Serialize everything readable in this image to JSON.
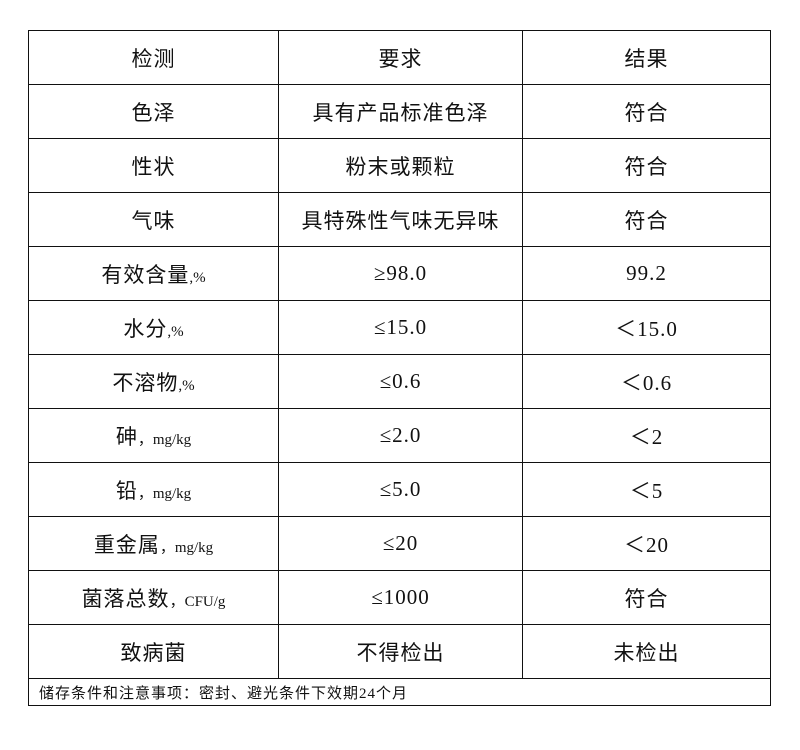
{
  "headers": [
    "检测",
    "要求",
    "结果"
  ],
  "rows": [
    {
      "item": "色泽",
      "unit": "",
      "requirement": "具有产品标准色泽",
      "result": "符合"
    },
    {
      "item": "性状",
      "unit": "",
      "requirement": "粉末或颗粒",
      "result": "符合"
    },
    {
      "item": "气味",
      "unit": "",
      "requirement": "具特殊性气味无异味",
      "result": "符合"
    },
    {
      "item": "有效含量",
      "unit": ",%",
      "requirement": "≥98.0",
      "result": "99.2"
    },
    {
      "item": "水分",
      "unit": ",%",
      "requirement": "≤15.0",
      "result": "＜15.0"
    },
    {
      "item": "不溶物",
      "unit": ",%",
      "requirement": "≤0.6",
      "result": "＜0.6"
    },
    {
      "item": "砷",
      "unit": "，mg/kg",
      "requirement": "≤2.0",
      "result": "＜2"
    },
    {
      "item": "铅",
      "unit": "，mg/kg",
      "requirement": "≤5.0",
      "result": "＜5"
    },
    {
      "item": "重金属",
      "unit": "，mg/kg",
      "requirement": "≤20",
      "result": "＜20"
    },
    {
      "item": "菌落总数",
      "unit": "，CFU/g",
      "requirement": "≤1000",
      "result": "符合"
    },
    {
      "item": "致病菌",
      "unit": "",
      "requirement": "不得检出",
      "result": "未检出"
    }
  ],
  "footer": "储存条件和注意事项：密封、避光条件下效期24个月"
}
